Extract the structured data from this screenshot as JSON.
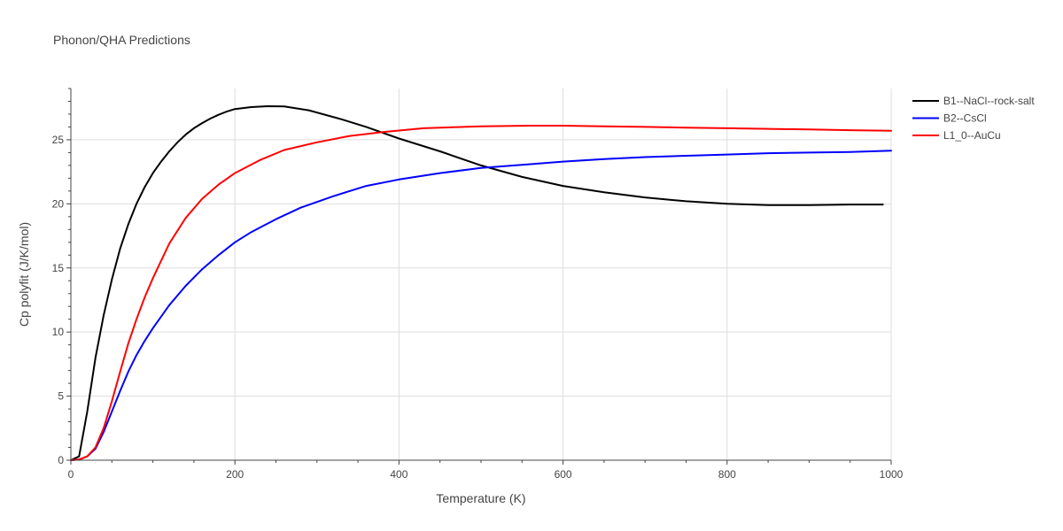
{
  "chart_data": {
    "type": "line",
    "title": "Phonon/QHA Predictions",
    "xlabel": "Temperature (K)",
    "ylabel": "Cp polyfit (J/K/mol)",
    "xlim": [
      0,
      1000
    ],
    "ylim": [
      0,
      29
    ],
    "xticks": [
      0,
      200,
      400,
      600,
      800,
      1000
    ],
    "xtick_labels": [
      "0",
      "200",
      "400",
      "600",
      "800",
      "1000"
    ],
    "yticks": [
      0,
      5,
      10,
      15,
      20,
      25
    ],
    "ytick_labels": [
      "0",
      "5",
      "10",
      "15",
      "20",
      "25"
    ],
    "grid": true,
    "legend_position": "top-right",
    "series": [
      {
        "name": "B1--NaCl--rock-salt",
        "color": "#000000",
        "x": [
          0,
          10,
          20,
          30,
          40,
          50,
          60,
          70,
          80,
          90,
          100,
          110,
          120,
          130,
          140,
          150,
          160,
          170,
          180,
          190,
          200,
          220,
          240,
          260,
          290,
          330,
          360,
          400,
          450,
          500,
          550,
          600,
          650,
          700,
          750,
          800,
          850,
          900,
          950,
          990
        ],
        "y": [
          0,
          0.3,
          3.8,
          8.0,
          11.3,
          14.1,
          16.5,
          18.4,
          20.0,
          21.3,
          22.4,
          23.3,
          24.1,
          24.8,
          25.4,
          25.9,
          26.3,
          26.65,
          26.95,
          27.2,
          27.4,
          27.55,
          27.62,
          27.6,
          27.3,
          26.6,
          26.0,
          25.1,
          24.1,
          23.0,
          22.1,
          21.4,
          20.9,
          20.5,
          20.2,
          20.0,
          19.9,
          19.9,
          19.95,
          19.95
        ]
      },
      {
        "name": "B2--CsCl",
        "color": "#0000ff",
        "x": [
          0,
          10,
          20,
          30,
          40,
          50,
          60,
          70,
          80,
          90,
          100,
          120,
          140,
          160,
          180,
          200,
          220,
          250,
          280,
          320,
          360,
          400,
          450,
          500,
          550,
          600,
          650,
          700,
          750,
          800,
          850,
          900,
          950,
          1000
        ],
        "y": [
          0,
          0.05,
          0.3,
          0.9,
          2.2,
          3.8,
          5.4,
          6.9,
          8.2,
          9.3,
          10.3,
          12.1,
          13.6,
          14.9,
          16.0,
          17.0,
          17.8,
          18.8,
          19.7,
          20.6,
          21.4,
          21.9,
          22.4,
          22.8,
          23.05,
          23.3,
          23.5,
          23.65,
          23.75,
          23.85,
          23.95,
          24.0,
          24.05,
          24.15
        ]
      },
      {
        "name": "L1_0--AuCu",
        "color": "#ff0000",
        "x": [
          0,
          10,
          20,
          30,
          40,
          50,
          60,
          70,
          80,
          90,
          100,
          120,
          140,
          160,
          180,
          200,
          230,
          260,
          300,
          340,
          380,
          430,
          500,
          560,
          600,
          650,
          700,
          750,
          800,
          850,
          900,
          950,
          1000
        ],
        "y": [
          0,
          0.05,
          0.3,
          1.0,
          2.5,
          4.6,
          6.9,
          9.1,
          11.0,
          12.7,
          14.2,
          16.9,
          18.9,
          20.4,
          21.5,
          22.4,
          23.4,
          24.2,
          24.8,
          25.3,
          25.6,
          25.9,
          26.05,
          26.1,
          26.1,
          26.05,
          26.0,
          25.95,
          25.9,
          25.85,
          25.8,
          25.75,
          25.7
        ]
      }
    ]
  }
}
